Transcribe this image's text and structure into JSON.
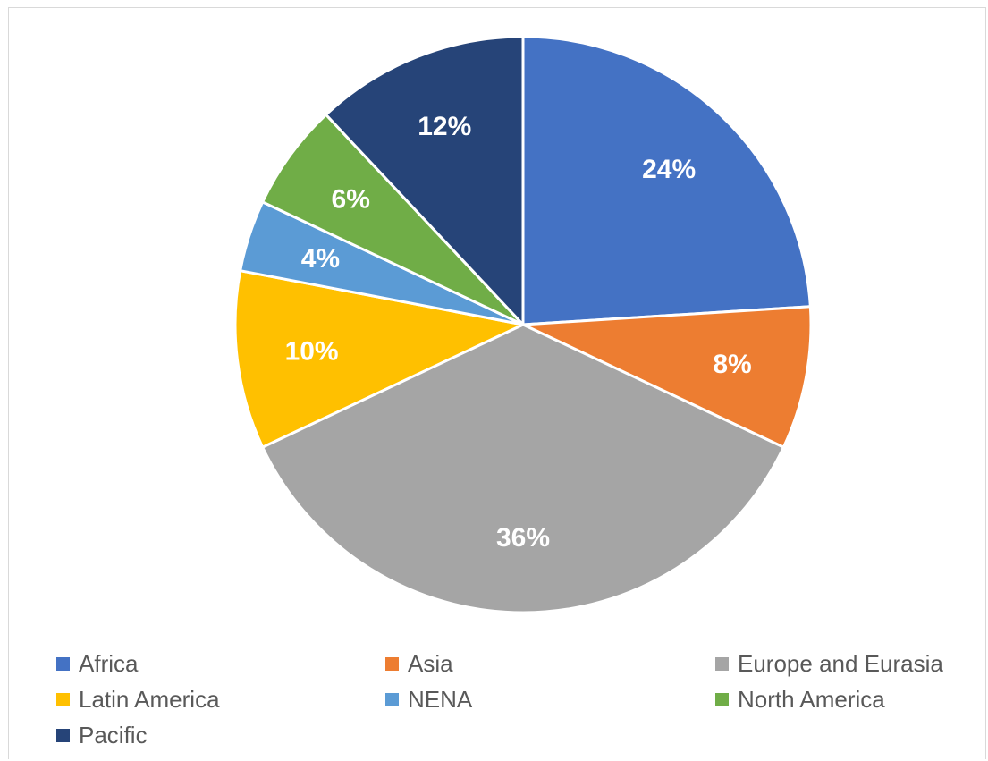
{
  "chart_data": {
    "type": "pie",
    "title": "",
    "slices": [
      {
        "label": "Africa",
        "value": 24,
        "display": "24%",
        "color": "#4472C4"
      },
      {
        "label": "Asia",
        "value": 8,
        "display": "8%",
        "color": "#ED7D31"
      },
      {
        "label": "Europe and Eurasia",
        "value": 36,
        "display": "36%",
        "color": "#A5A5A5"
      },
      {
        "label": "Latin America",
        "value": 10,
        "display": "10%",
        "color": "#FFC000"
      },
      {
        "label": "NENA",
        "value": 4,
        "display": "4%",
        "color": "#5B9BD5"
      },
      {
        "label": "North America",
        "value": 6,
        "display": "6%",
        "color": "#70AD47"
      },
      {
        "label": "Pacific",
        "value": 12,
        "display": "12%",
        "color": "#264478"
      }
    ],
    "start_angle": "12 o'clock, clockwise",
    "legend_position": "bottom"
  }
}
